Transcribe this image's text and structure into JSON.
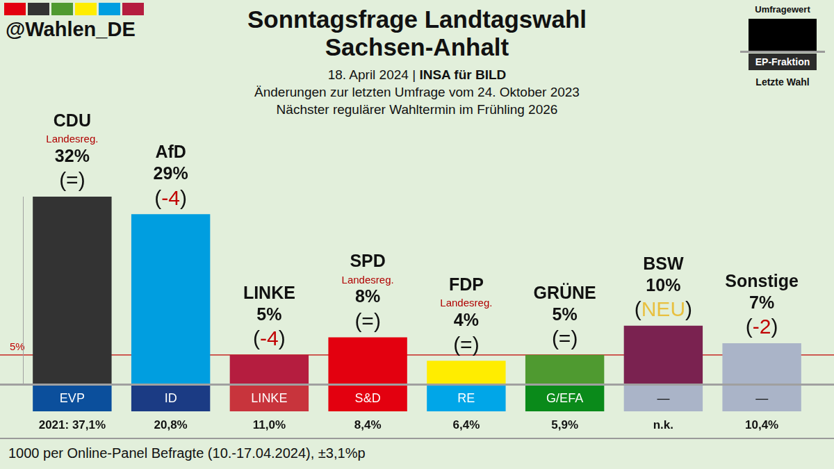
{
  "header": {
    "handle": "@Wahlen_DE",
    "subtitle_lines": [
      "18. April 2024 | INSA für BILD",
      "Änderungen zur letzten Umfrage vom 24. Oktober 2023",
      "Nächster regulärer Wahltermin im Frühling 2026"
    ],
    "key": {
      "value": "Umfragewert",
      "group": "EP-Fraktion",
      "last": "Letzte Wahl"
    },
    "footer": "1000 per Online-Panel Befragte (10.-17.04.2024), ±3,1%p"
  },
  "chart_data": {
    "type": "bar",
    "title": "Sonntagsfrage Landtagswahl\nSachsen-Anhalt",
    "categories": [
      "CDU",
      "AfD",
      "LINKE",
      "SPD",
      "FDP",
      "GRÜNE",
      "BSW",
      "Sonstige"
    ],
    "values": [
      32,
      29,
      5,
      8,
      4,
      5,
      10,
      7
    ],
    "value_labels": [
      "32%",
      "29%",
      "5%",
      "8%",
      "4%",
      "5%",
      "10%",
      "7%"
    ],
    "colors": [
      "#333333",
      "#009ee0",
      "#b51d3f",
      "#e3000f",
      "#ffed00",
      "#4f9a30",
      "#7a2250",
      "#aab4c8"
    ],
    "changes": [
      "(=)",
      "(-4)",
      "(-4)",
      "(=)",
      "(=)",
      "(=)",
      "(NEU)",
      "(-2)"
    ],
    "government": [
      "Landesreg.",
      null,
      null,
      "Landesreg.",
      "Landesreg.",
      null,
      null,
      null
    ],
    "ep_groups": [
      {
        "label": "EVP",
        "color": "#0b4f9c"
      },
      {
        "label": "ID",
        "color": "#1b3b84"
      },
      {
        "label": "LINKE",
        "color": "#c8343c"
      },
      {
        "label": "S&D",
        "color": "#e3000f"
      },
      {
        "label": "RE",
        "color": "#00a6e8"
      },
      {
        "label": "G/EFA",
        "color": "#0a8a1a"
      },
      {
        "label": "—",
        "color": "#aab4c8"
      },
      {
        "label": "—",
        "color": "#aab4c8"
      }
    ],
    "last_election_labels": [
      "2021: 37,1%",
      "20,8%",
      "11,0%",
      "8,4%",
      "6,4%",
      "5,9%",
      "n.k.",
      "10,4%"
    ],
    "threshold": {
      "value": 5,
      "label": "5%"
    },
    "ylim": [
      0,
      32
    ],
    "yticks": [
      0
    ],
    "data_labels": true,
    "tick_labels": false
  }
}
